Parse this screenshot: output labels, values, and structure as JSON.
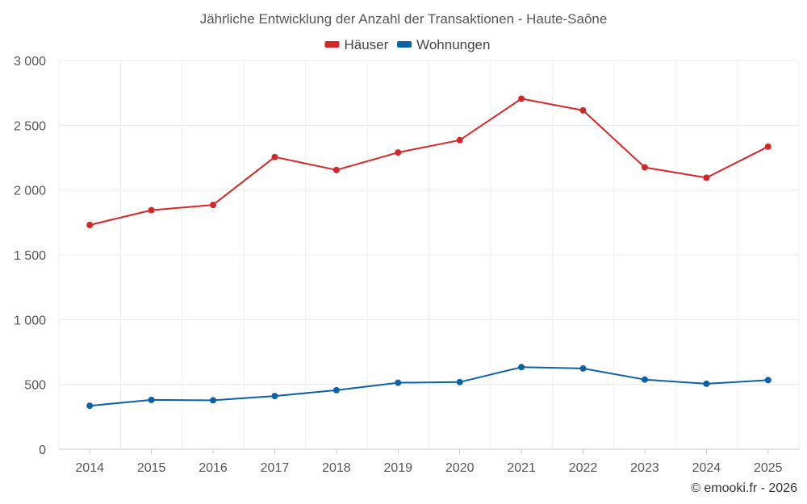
{
  "chart_data": {
    "type": "line",
    "title": "Jährliche Entwicklung der Anzahl der Transaktionen - Haute-Saône",
    "categories": [
      "2014",
      "2015",
      "2016",
      "2017",
      "2018",
      "2019",
      "2020",
      "2021",
      "2022",
      "2023",
      "2024",
      "2025"
    ],
    "series": [
      {
        "name": "Häuser",
        "color": "#d62728",
        "values": [
          1730,
          1845,
          1885,
          2255,
          2155,
          2290,
          2385,
          2705,
          2615,
          2175,
          2095,
          2335
        ]
      },
      {
        "name": "Wohnungen",
        "color": "#0b62a4",
        "values": [
          335,
          380,
          377,
          410,
          455,
          513,
          518,
          633,
          623,
          537,
          505,
          533
        ]
      }
    ],
    "ylim": [
      0,
      3000
    ],
    "yticks": [
      0,
      500,
      1000,
      1500,
      2000,
      2500,
      3000
    ],
    "ytick_labels": [
      "0",
      "500",
      "1 000",
      "1 500",
      "2 000",
      "2 500",
      "3 000"
    ],
    "xlabel": "",
    "ylabel": "",
    "grid": true,
    "legend": "top-center"
  },
  "credit": "© emooki.fr - 2026"
}
